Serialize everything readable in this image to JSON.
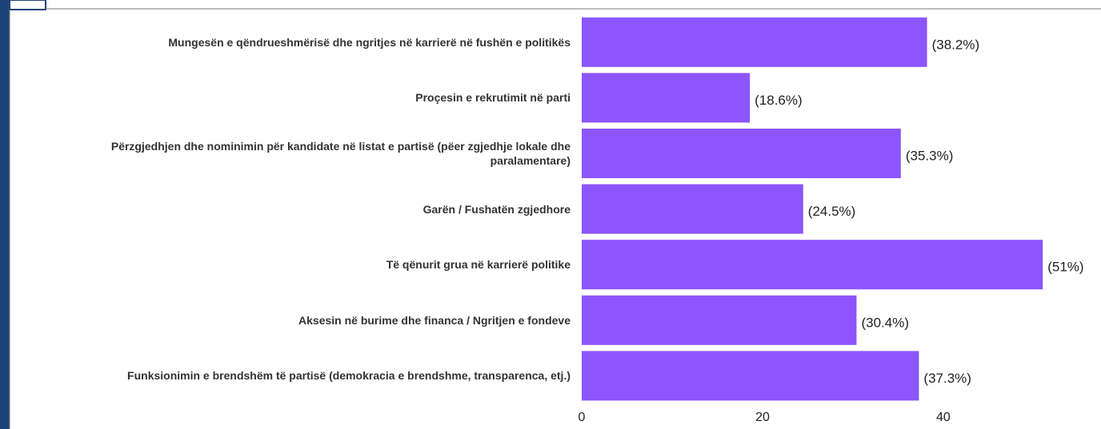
{
  "chart_data": {
    "type": "hbar",
    "categories": [
      "Mungesën e qëndrueshmërisë dhe ngritjes në karrierë në fushën e politikës",
      "Proçesin e rekrutimit në parti",
      "Përzgjedhjen dhe nominimin për kandidate në listat e partisë (pëer zgjedhje lokale dhe paralamentare)",
      "Garën / Fushatën zgjedhore",
      "Të qënurit grua në karrierë politike",
      "Aksesin në burime dhe financa / Ngritjen e fondeve",
      "Funksionimin e brendshëm të partisë (demokracia e brendshme, transparenca, etj.)"
    ],
    "values": [
      38.2,
      18.6,
      35.3,
      24.5,
      51,
      30.4,
      37.3
    ],
    "value_labels": [
      "(38.2%)",
      "(18.6%)",
      "(35.3%)",
      "(24.5%)",
      "(51%)",
      "(30.4%)",
      "(37.3%)"
    ],
    "color": "#8c55fd",
    "xlim": [
      0,
      57
    ],
    "xticks": [
      0,
      20,
      40
    ]
  }
}
